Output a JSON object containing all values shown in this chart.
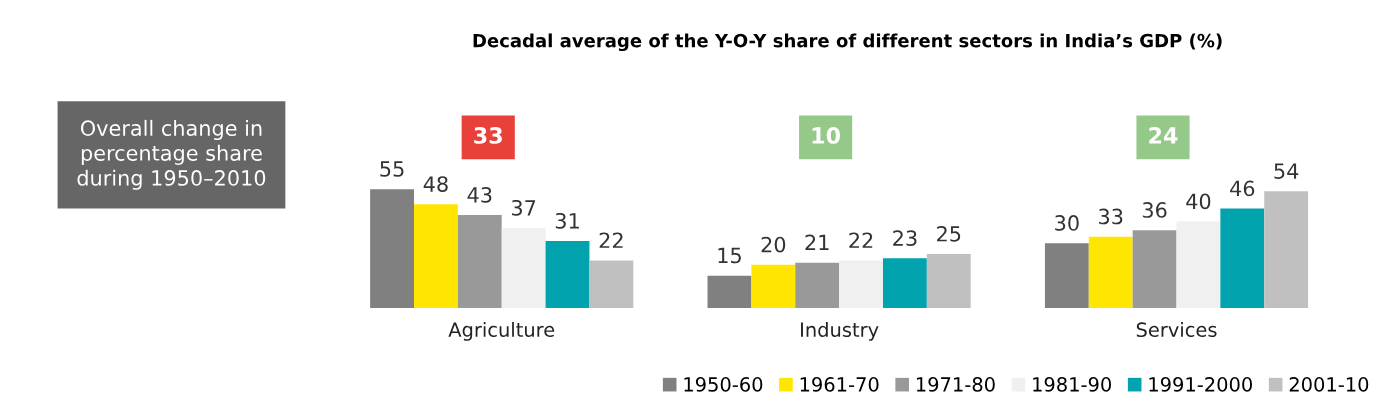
{
  "chart_data": {
    "type": "bar",
    "title": "Decadal average of the Y-O-Y share of different sectors in India’s GDP (%)",
    "categories": [
      "Agriculture",
      "Industry",
      "Services"
    ],
    "series": [
      {
        "name": "1950-60",
        "color": "#808080",
        "values": [
          55,
          15,
          30
        ]
      },
      {
        "name": "1961-70",
        "color": "#ffe600",
        "values": [
          48,
          20,
          33
        ]
      },
      {
        "name": "1971-80",
        "color": "#999999",
        "values": [
          43,
          21,
          36
        ]
      },
      {
        "name": "1981-90",
        "color": "#f0f0f0",
        "values": [
          37,
          22,
          40
        ]
      },
      {
        "name": "1991-2000",
        "color": "#00a3ae",
        "values": [
          31,
          23,
          46
        ]
      },
      {
        "name": "2001-10",
        "color": "#c0c0c0",
        "values": [
          22,
          25,
          54
        ]
      }
    ],
    "data_labels": true,
    "legend": "bottom right",
    "grid": false,
    "annotations": [
      "Overall change in\npercentage share\nduring 1950–2010",
      "33",
      "10",
      "24"
    ]
  }
}
